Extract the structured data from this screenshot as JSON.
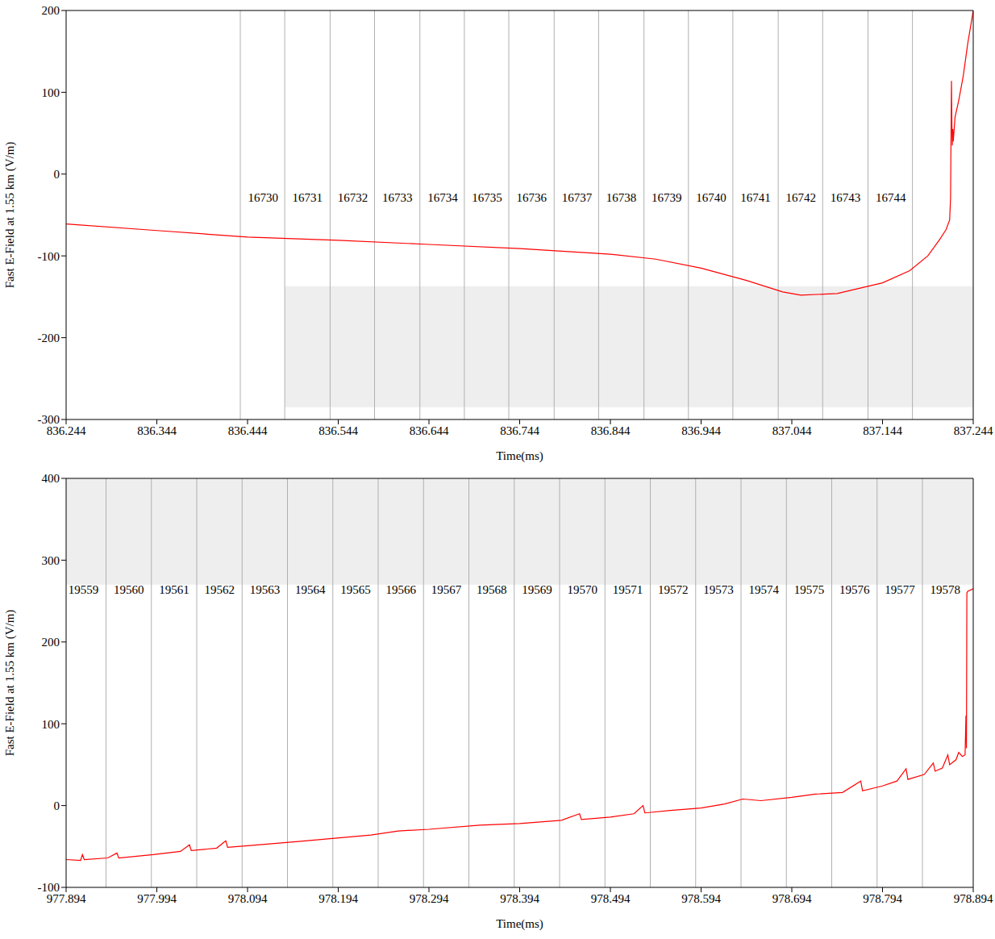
{
  "chart_data": [
    {
      "type": "line",
      "x_label": "Time(ms)",
      "y_label": "Fast E-Field at 1.55 km (V/m)",
      "xlim": [
        836.244,
        837.244
      ],
      "xticks": [
        836.244,
        836.344,
        836.444,
        836.544,
        836.644,
        836.744,
        836.844,
        836.944,
        837.044,
        837.144,
        837.244
      ],
      "ylim": [
        -300,
        200
      ],
      "yticks": [
        -300,
        -200,
        -100,
        0,
        100,
        200
      ],
      "color": "#ff0000",
      "x": [
        836.244,
        836.344,
        836.444,
        836.544,
        836.644,
        836.744,
        836.844,
        836.894,
        836.944,
        836.994,
        837.034,
        837.054,
        837.094,
        837.144,
        837.174,
        837.194,
        837.207,
        837.214,
        837.218,
        837.219,
        837.22,
        837.2205,
        837.221,
        837.2215,
        837.222,
        837.224,
        837.228,
        837.233,
        837.238,
        837.244
      ],
      "values": [
        -61,
        -69,
        -77,
        -81,
        -86,
        -91,
        -98,
        -104,
        -115,
        -130,
        -144,
        -148,
        -146,
        -133,
        -118,
        -100,
        -80,
        -68,
        -56,
        -30,
        114,
        60,
        35,
        55,
        40,
        70,
        90,
        120,
        160,
        200
      ],
      "frame_boundaries": [
        836.436,
        836.485,
        836.535,
        836.584,
        836.634,
        836.683,
        836.732,
        836.782,
        836.831,
        836.881,
        836.93,
        836.979,
        837.029,
        837.078,
        837.128,
        837.177
      ],
      "frame_labels": [
        "16730",
        "16731",
        "16732",
        "16733",
        "16734",
        "16735",
        "16736",
        "16737",
        "16738",
        "16739",
        "16740",
        "16741",
        "16742",
        "16743",
        "16744"
      ],
      "frame_label_x": [
        836.461,
        836.51,
        836.56,
        836.609,
        836.659,
        836.708,
        836.757,
        836.807,
        836.856,
        836.906,
        836.955,
        837.004,
        837.054,
        837.103,
        837.153
      ]
    },
    {
      "type": "line",
      "x_label": "Time(ms)",
      "y_label": "Fast E-Field at 1.55 km (V/m)",
      "xlim": [
        977.894,
        978.894
      ],
      "xticks": [
        977.894,
        977.994,
        978.094,
        978.194,
        978.294,
        978.394,
        978.494,
        978.594,
        978.694,
        978.794,
        978.894
      ],
      "ylim": [
        -100,
        400
      ],
      "yticks": [
        -100,
        0,
        100,
        200,
        300,
        400
      ],
      "color": "#ff0000",
      "x": [
        977.894,
        977.91,
        977.912,
        977.914,
        977.94,
        977.95,
        977.952,
        977.99,
        978.02,
        978.03,
        978.032,
        978.06,
        978.07,
        978.072,
        978.094,
        978.15,
        978.19,
        978.23,
        978.26,
        978.294,
        978.35,
        978.394,
        978.44,
        978.46,
        978.462,
        978.494,
        978.52,
        978.53,
        978.532,
        978.56,
        978.594,
        978.62,
        978.64,
        978.66,
        978.694,
        978.72,
        978.75,
        978.77,
        978.772,
        978.794,
        978.81,
        978.82,
        978.822,
        978.84,
        978.85,
        978.852,
        978.86,
        978.866,
        978.868,
        978.875,
        978.878,
        978.882,
        978.885,
        978.886,
        978.8865,
        978.887,
        978.888,
        978.894
      ],
      "values": [
        -66,
        -67,
        -60,
        -66,
        -64,
        -58,
        -64,
        -60,
        -56,
        -48,
        -55,
        -52,
        -43,
        -51,
        -49,
        -44,
        -40,
        -36,
        -31,
        -29,
        -24,
        -22,
        -18,
        -10,
        -17,
        -14,
        -10,
        0,
        -9,
        -6,
        -3,
        2,
        8,
        6,
        10,
        14,
        16,
        30,
        18,
        24,
        30,
        45,
        32,
        38,
        52,
        42,
        46,
        62,
        50,
        56,
        65,
        60,
        62,
        110,
        70,
        260,
        262,
        265
      ],
      "frame_boundaries": [
        977.938,
        977.988,
        978.038,
        978.088,
        978.138,
        978.188,
        978.238,
        978.288,
        978.338,
        978.388,
        978.438,
        978.488,
        978.538,
        978.588,
        978.638,
        978.688,
        978.738,
        978.788,
        978.838
      ],
      "frame_labels": [
        "19559",
        "19560",
        "19561",
        "19562",
        "19563",
        "19564",
        "19565",
        "19566",
        "19567",
        "19568",
        "19569",
        "19570",
        "19571",
        "19572",
        "19573",
        "19574",
        "19575",
        "19576",
        "19577",
        "19578"
      ],
      "frame_label_x": [
        977.913,
        977.963,
        978.013,
        978.063,
        978.113,
        978.163,
        978.213,
        978.263,
        978.313,
        978.363,
        978.413,
        978.463,
        978.513,
        978.563,
        978.613,
        978.663,
        978.713,
        978.763,
        978.813,
        978.863
      ]
    }
  ]
}
